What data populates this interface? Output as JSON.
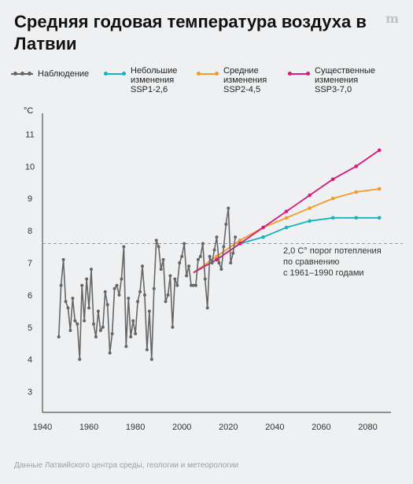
{
  "title": "Средняя годовая температура воздуха в Латвии",
  "logo": "m",
  "unit": "°C",
  "source": "Данные Латвийского центра среды, геологии и метеорологии",
  "legend": [
    {
      "key": "obs",
      "label": "Наблюдение",
      "color": "#666666"
    },
    {
      "key": "ssp126",
      "label": "Небольшие изменения SSP1-2,6",
      "color": "#17b3c0"
    },
    {
      "key": "ssp245",
      "label": "Средние изменения SSP2-4,5",
      "color": "#f39a2a"
    },
    {
      "key": "ssp370",
      "label": "Существенные изменения SSP3-7,0",
      "color": "#d81b7e"
    }
  ],
  "annotation": [
    "2,0 C° порог потепления",
    "по сравнению",
    "с 1961–1990 годами"
  ],
  "chart_data": {
    "type": "line",
    "xlim": [
      1940,
      2090
    ],
    "ylim": [
      2.5,
      11.5
    ],
    "x_ticks": [
      1940,
      1960,
      1980,
      2000,
      2020,
      2040,
      2060,
      2080
    ],
    "y_ticks": [
      3,
      4,
      5,
      6,
      7,
      8,
      9,
      10,
      11
    ],
    "threshold": 7.6,
    "series": [
      {
        "name": "Наблюдение",
        "color": "#666666",
        "x": [
          1947,
          1948,
          1949,
          1950,
          1951,
          1952,
          1953,
          1954,
          1955,
          1956,
          1957,
          1958,
          1959,
          1960,
          1961,
          1962,
          1963,
          1964,
          1965,
          1966,
          1967,
          1968,
          1969,
          1970,
          1971,
          1972,
          1973,
          1974,
          1975,
          1976,
          1977,
          1978,
          1979,
          1980,
          1981,
          1982,
          1983,
          1984,
          1985,
          1986,
          1987,
          1988,
          1989,
          1990,
          1991,
          1992,
          1993,
          1994,
          1995,
          1996,
          1997,
          1998,
          1999,
          2000,
          2001,
          2002,
          2003,
          2004,
          2005,
          2006,
          2007,
          2008,
          2009,
          2010,
          2011,
          2012,
          2013,
          2014,
          2015,
          2016,
          2017,
          2018,
          2019,
          2020,
          2021,
          2022,
          2023
        ],
        "y": [
          4.7,
          6.3,
          7.1,
          5.8,
          5.6,
          4.9,
          5.9,
          5.2,
          5.1,
          4.0,
          6.3,
          5.2,
          6.5,
          5.6,
          6.8,
          5.1,
          4.7,
          5.5,
          4.9,
          5.0,
          6.1,
          5.7,
          4.2,
          4.8,
          6.2,
          6.3,
          6.0,
          6.5,
          7.5,
          4.4,
          5.9,
          4.7,
          5.2,
          4.8,
          5.8,
          6.1,
          6.9,
          6.0,
          4.3,
          5.5,
          4.0,
          6.2,
          7.7,
          7.5,
          6.8,
          7.1,
          5.8,
          6.0,
          6.6,
          5.0,
          6.5,
          6.3,
          7.0,
          7.2,
          7.6,
          6.6,
          6.9,
          6.3,
          6.3,
          6.3,
          7.1,
          7.2,
          7.6,
          6.5,
          5.6,
          7.2,
          7.0,
          7.4,
          7.8,
          7.0,
          6.8,
          7.5,
          8.2,
          8.7,
          7.0,
          7.3,
          7.8
        ]
      },
      {
        "name": "Небольшие изменения SSP1-2,6",
        "color": "#17b3c0",
        "x": [
          2005,
          2015,
          2025,
          2035,
          2045,
          2055,
          2065,
          2075,
          2085
        ],
        "y": [
          6.7,
          7.1,
          7.6,
          7.8,
          8.1,
          8.3,
          8.4,
          8.4,
          8.4
        ]
      },
      {
        "name": "Средние изменения SSP2-4,5",
        "color": "#f39a2a",
        "x": [
          2005,
          2015,
          2025,
          2035,
          2045,
          2055,
          2065,
          2075,
          2085
        ],
        "y": [
          6.7,
          7.2,
          7.7,
          8.1,
          8.4,
          8.7,
          9.0,
          9.2,
          9.3
        ]
      },
      {
        "name": "Существенные изменения SSP3-7,0",
        "color": "#d81b7e",
        "x": [
          2005,
          2015,
          2025,
          2035,
          2045,
          2055,
          2065,
          2075,
          2085
        ],
        "y": [
          6.7,
          7.1,
          7.6,
          8.1,
          8.6,
          9.1,
          9.6,
          10.0,
          10.5
        ]
      }
    ]
  }
}
